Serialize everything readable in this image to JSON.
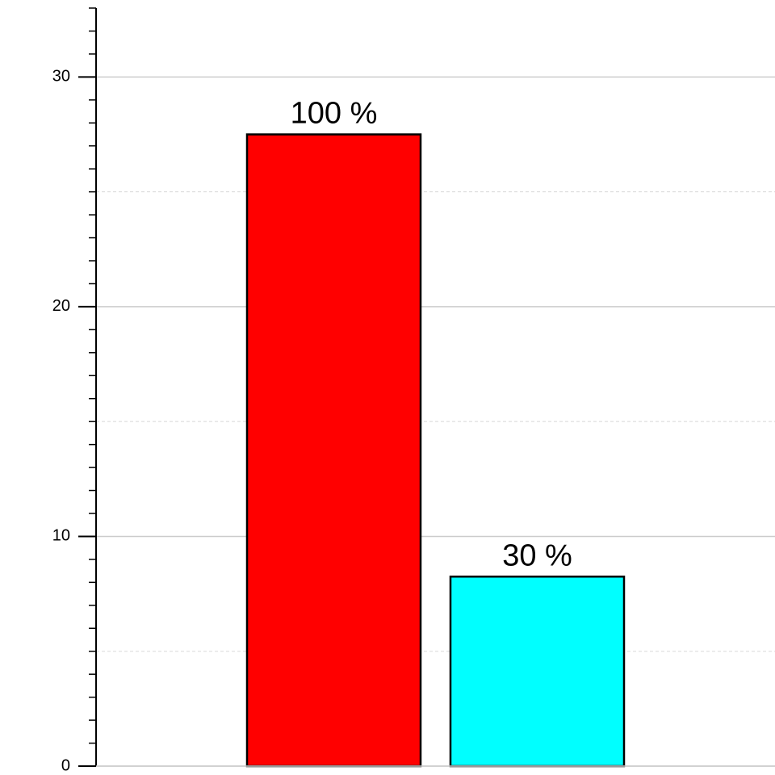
{
  "chart_data": {
    "type": "bar",
    "categories": [
      null,
      null
    ],
    "values": [
      27.5,
      8.25
    ],
    "colors": [
      "#ff0000",
      "#00ffff"
    ],
    "annotations": [
      "100 %",
      "30 %"
    ],
    "ylim": [
      0,
      33
    ],
    "yticks": [
      0,
      10,
      20,
      30
    ],
    "yminorticks": [
      1,
      2,
      3,
      4,
      5,
      6,
      7,
      8,
      9,
      11,
      12,
      13,
      14,
      15,
      16,
      17,
      18,
      19,
      21,
      22,
      23,
      24,
      25,
      26,
      27,
      28,
      29,
      31,
      32,
      33
    ],
    "minor_grid": [
      5,
      15,
      25
    ],
    "grid": true
  }
}
